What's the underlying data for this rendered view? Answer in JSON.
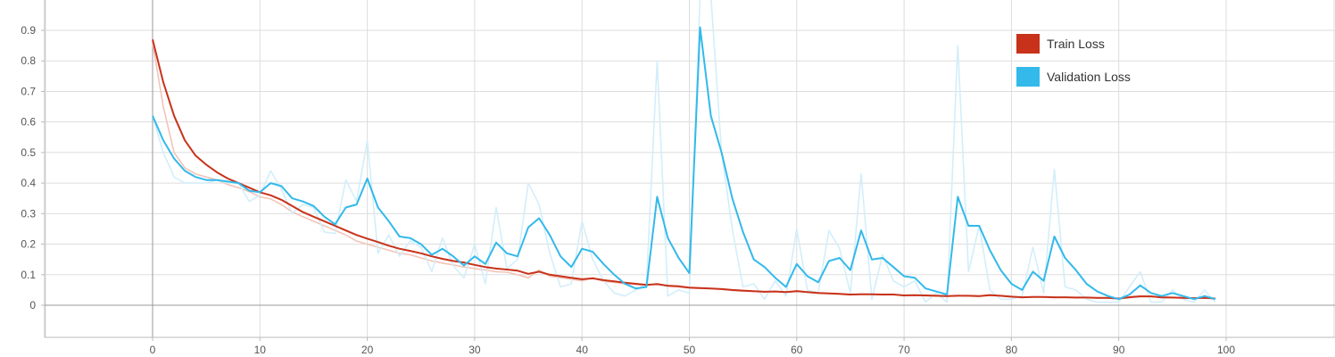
{
  "chart_data": {
    "type": "line",
    "title": "",
    "xlabel": "",
    "ylabel": "",
    "xlim": [
      -10,
      108
    ],
    "ylim": [
      -0.1,
      0.98
    ],
    "x_ticks": [
      0,
      10,
      20,
      30,
      40,
      50,
      60,
      70,
      80,
      90,
      100
    ],
    "y_ticks": [
      0,
      0.1,
      0.2,
      0.3,
      0.4,
      0.5,
      0.6,
      0.7,
      0.8,
      0.9
    ],
    "grid": true,
    "legend_position": "top-right",
    "series": [
      {
        "name": "Train Loss",
        "color": "#c8321a",
        "raw_color": "#f2c4b8",
        "x": [
          0,
          1,
          2,
          3,
          4,
          5,
          6,
          7,
          8,
          9,
          10,
          11,
          12,
          13,
          14,
          15,
          16,
          17,
          18,
          19,
          20,
          21,
          22,
          23,
          24,
          25,
          26,
          27,
          28,
          29,
          30,
          31,
          32,
          33,
          34,
          35,
          36,
          37,
          38,
          39,
          40,
          41,
          42,
          43,
          44,
          45,
          46,
          47,
          48,
          49,
          50,
          51,
          52,
          53,
          54,
          55,
          56,
          57,
          58,
          59,
          60,
          61,
          62,
          63,
          64,
          65,
          66,
          67,
          68,
          69,
          70,
          71,
          72,
          73,
          74,
          75,
          76,
          77,
          78,
          79,
          80,
          81,
          82,
          83,
          84,
          85,
          86,
          87,
          88,
          89,
          90,
          91,
          92,
          93,
          94,
          95,
          96,
          97,
          98,
          99
        ],
        "smoothed": [
          0.87,
          0.73,
          0.62,
          0.54,
          0.49,
          0.46,
          0.435,
          0.415,
          0.4,
          0.385,
          0.37,
          0.36,
          0.345,
          0.325,
          0.305,
          0.29,
          0.275,
          0.26,
          0.245,
          0.23,
          0.218,
          0.207,
          0.195,
          0.185,
          0.178,
          0.17,
          0.16,
          0.152,
          0.145,
          0.14,
          0.132,
          0.125,
          0.12,
          0.117,
          0.113,
          0.103,
          0.11,
          0.1,
          0.095,
          0.09,
          0.085,
          0.088,
          0.082,
          0.078,
          0.074,
          0.07,
          0.067,
          0.069,
          0.064,
          0.062,
          0.058,
          0.056,
          0.055,
          0.053,
          0.05,
          0.048,
          0.046,
          0.044,
          0.045,
          0.043,
          0.046,
          0.043,
          0.04,
          0.039,
          0.037,
          0.035,
          0.036,
          0.036,
          0.035,
          0.035,
          0.032,
          0.033,
          0.032,
          0.031,
          0.03,
          0.031,
          0.031,
          0.03,
          0.033,
          0.031,
          0.028,
          0.026,
          0.027,
          0.027,
          0.026,
          0.026,
          0.025,
          0.025,
          0.024,
          0.024,
          0.022,
          0.026,
          0.029,
          0.029,
          0.026,
          0.025,
          0.024,
          0.023,
          0.024,
          0.022
        ],
        "raw": [
          0.86,
          0.65,
          0.5,
          0.45,
          0.43,
          0.42,
          0.41,
          0.395,
          0.385,
          0.372,
          0.355,
          0.348,
          0.33,
          0.305,
          0.29,
          0.275,
          0.26,
          0.245,
          0.23,
          0.21,
          0.2,
          0.19,
          0.18,
          0.17,
          0.165,
          0.155,
          0.145,
          0.138,
          0.132,
          0.125,
          0.12,
          0.115,
          0.11,
          0.108,
          0.1,
          0.09,
          0.115,
          0.095,
          0.09,
          0.085,
          0.08,
          0.09,
          0.078,
          0.075,
          0.07,
          0.068,
          0.065,
          0.071,
          0.062,
          0.06,
          0.056,
          0.055,
          0.054,
          0.052,
          0.048,
          0.046,
          0.045,
          0.043,
          0.046,
          0.042,
          0.048,
          0.042,
          0.039,
          0.038,
          0.036,
          0.034,
          0.037,
          0.036,
          0.034,
          0.036,
          0.031,
          0.033,
          0.031,
          0.03,
          0.029,
          0.032,
          0.03,
          0.029,
          0.035,
          0.03,
          0.027,
          0.025,
          0.028,
          0.027,
          0.025,
          0.026,
          0.024,
          0.025,
          0.023,
          0.024,
          0.02,
          0.028,
          0.031,
          0.03,
          0.024,
          0.025,
          0.023,
          0.022,
          0.025,
          0.021
        ]
      },
      {
        "name": "Validation Loss",
        "color": "#33b9ea",
        "raw_color": "#d3eefa",
        "x": [
          0,
          1,
          2,
          3,
          4,
          5,
          6,
          7,
          8,
          9,
          10,
          11,
          12,
          13,
          14,
          15,
          16,
          17,
          18,
          19,
          20,
          21,
          22,
          23,
          24,
          25,
          26,
          27,
          28,
          29,
          30,
          31,
          32,
          33,
          34,
          35,
          36,
          37,
          38,
          39,
          40,
          41,
          42,
          43,
          44,
          45,
          46,
          47,
          48,
          49,
          50,
          51,
          52,
          53,
          54,
          55,
          56,
          57,
          58,
          59,
          60,
          61,
          62,
          63,
          64,
          65,
          66,
          67,
          68,
          69,
          70,
          71,
          72,
          73,
          74,
          75,
          76,
          77,
          78,
          79,
          80,
          81,
          82,
          83,
          84,
          85,
          86,
          87,
          88,
          89,
          90,
          91,
          92,
          93,
          94,
          95,
          96,
          97,
          98,
          99
        ],
        "smoothed": [
          0.62,
          0.54,
          0.48,
          0.44,
          0.42,
          0.41,
          0.41,
          0.405,
          0.4,
          0.375,
          0.37,
          0.4,
          0.39,
          0.35,
          0.34,
          0.325,
          0.29,
          0.265,
          0.32,
          0.33,
          0.415,
          0.32,
          0.275,
          0.225,
          0.22,
          0.2,
          0.165,
          0.185,
          0.16,
          0.13,
          0.16,
          0.135,
          0.205,
          0.17,
          0.16,
          0.255,
          0.285,
          0.23,
          0.16,
          0.125,
          0.185,
          0.175,
          0.135,
          0.1,
          0.07,
          0.055,
          0.06,
          0.355,
          0.22,
          0.155,
          0.105,
          0.91,
          0.62,
          0.5,
          0.35,
          0.24,
          0.15,
          0.125,
          0.09,
          0.06,
          0.135,
          0.095,
          0.075,
          0.145,
          0.155,
          0.115,
          0.245,
          0.15,
          0.155,
          0.125,
          0.095,
          0.09,
          0.055,
          0.045,
          0.035,
          0.355,
          0.26,
          0.26,
          0.18,
          0.115,
          0.07,
          0.05,
          0.11,
          0.08,
          0.225,
          0.155,
          0.115,
          0.07,
          0.045,
          0.03,
          0.02,
          0.035,
          0.065,
          0.04,
          0.03,
          0.04,
          0.03,
          0.02,
          0.03,
          0.02
        ],
        "raw": [
          0.62,
          0.5,
          0.42,
          0.4,
          0.4,
          0.4,
          0.41,
          0.4,
          0.4,
          0.34,
          0.36,
          0.44,
          0.38,
          0.3,
          0.33,
          0.32,
          0.24,
          0.235,
          0.41,
          0.34,
          0.54,
          0.17,
          0.23,
          0.16,
          0.21,
          0.19,
          0.11,
          0.22,
          0.13,
          0.09,
          0.2,
          0.07,
          0.32,
          0.12,
          0.15,
          0.4,
          0.33,
          0.17,
          0.06,
          0.07,
          0.275,
          0.15,
          0.08,
          0.04,
          0.03,
          0.05,
          0.07,
          0.8,
          0.03,
          0.05,
          0.04,
          1.05,
          1.05,
          0.5,
          0.25,
          0.06,
          0.07,
          0.02,
          0.08,
          0.03,
          0.25,
          0.05,
          0.04,
          0.245,
          0.185,
          0.04,
          0.43,
          0.02,
          0.165,
          0.08,
          0.06,
          0.08,
          0.01,
          0.04,
          0.01,
          0.85,
          0.11,
          0.26,
          0.05,
          0.02,
          0.02,
          0.03,
          0.19,
          0.04,
          0.445,
          0.06,
          0.05,
          0.02,
          0.01,
          0.01,
          0.01,
          0.06,
          0.11,
          0.01,
          0.01,
          0.05,
          0.02,
          0.01,
          0.05,
          0.01
        ]
      }
    ]
  },
  "axis_colors": {
    "grid": "#dddddd",
    "zero_line": "#999999",
    "tick": "#bbbbbb"
  }
}
